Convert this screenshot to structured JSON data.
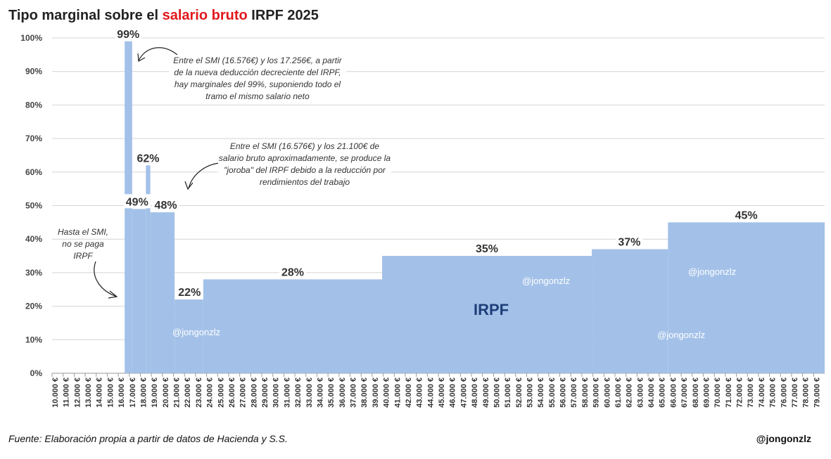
{
  "title": {
    "part1": "Tipo marginal sobre el ",
    "highlight": "salario bruto",
    "part2": " IRPF 2025",
    "highlight_color": "#e0181c"
  },
  "source": "Fuente: Elaboración propia a partir de datos de Hacienda y S.S.",
  "handle": "@jongonzlz",
  "annotations": {
    "note1": "Entre el SMI (16.576€) y los 17.256€, a partir de la nueva deducción decreciente del IRPF, hay marginales del 99%, suponiendo todo el tramo el mismo salario neto",
    "note2": "Entre el SMI (16.576€) y los 21.100€ de salario bruto aproximadamente, se produce la \"joroba\" del IRPF debido a la reducción por rendimientos del trabajo",
    "note3": "Hasta el SMI, no se paga IRPF"
  },
  "watermarks": [
    "@jongonzlz",
    "@jongonzlz",
    "@jongonzlz",
    "@jongonzlz"
  ],
  "series_label": "IRPF",
  "chart_data": {
    "type": "area",
    "title": "Tipo marginal sobre el salario bruto IRPF 2025",
    "xlabel": "",
    "ylabel": "",
    "ylim": [
      0,
      100
    ],
    "xlim": [
      10000,
      79999
    ],
    "grid": true,
    "fill_color": "#a3c1e8",
    "y_ticks": [
      "0%",
      "10%",
      "20%",
      "30%",
      "40%",
      "50%",
      "60%",
      "70%",
      "80%",
      "90%",
      "100%"
    ],
    "x_ticks": [
      "10.000 €",
      "11.000 €",
      "12.000 €",
      "13.000 €",
      "14.000 €",
      "15.000 €",
      "16.000 €",
      "17.000 €",
      "18.000 €",
      "19.000 €",
      "20.000 €",
      "21.000 €",
      "22.000 €",
      "23.000 €",
      "24.000 €",
      "25.000 €",
      "26.000 €",
      "27.000 €",
      "28.000 €",
      "29.000 €",
      "30.000 €",
      "31.000 €",
      "32.000 €",
      "33.000 €",
      "34.000 €",
      "35.000 €",
      "36.000 €",
      "37.000 €",
      "38.000 €",
      "39.000 €",
      "40.000 €",
      "41.000 €",
      "42.000 €",
      "43.000 €",
      "44.000 €",
      "45.000 €",
      "46.000 €",
      "47.000 €",
      "48.000 €",
      "49.000 €",
      "50.000 €",
      "51.000 €",
      "52.000 €",
      "53.000 €",
      "54.000 €",
      "55.000 €",
      "56.000 €",
      "57.000 €",
      "58.000 €",
      "59.000 €",
      "60.000 €",
      "61.000 €",
      "62.000 €",
      "63.000 €",
      "64.000 €",
      "65.000 €",
      "66.000 €",
      "67.000 €",
      "68.000 €",
      "69.000 €",
      "70.000 €",
      "71.000 €",
      "72.000 €",
      "73.000 €",
      "74.000 €",
      "75.000 €",
      "76.000 €",
      "77.000 €",
      "78.000 €",
      "79.000 €"
    ],
    "segments": [
      {
        "from": 10000,
        "to": 16576,
        "rate": 0
      },
      {
        "from": 16576,
        "to": 17256,
        "rate": 99
      },
      {
        "from": 17256,
        "to": 18500,
        "rate": 49
      },
      {
        "from": 18500,
        "to": 18900,
        "rate": 62
      },
      {
        "from": 18900,
        "to": 21100,
        "rate": 48
      },
      {
        "from": 21100,
        "to": 23700,
        "rate": 22
      },
      {
        "from": 23700,
        "to": 39900,
        "rate": 28
      },
      {
        "from": 39900,
        "to": 58900,
        "rate": 35
      },
      {
        "from": 58900,
        "to": 65800,
        "rate": 37
      },
      {
        "from": 65800,
        "to": 79999,
        "rate": 45
      }
    ],
    "data_labels": [
      {
        "text": "99%",
        "x": 16900,
        "y": 99
      },
      {
        "text": "62%",
        "x": 18700,
        "y": 62
      },
      {
        "text": "49%",
        "x": 17700,
        "y": 49
      },
      {
        "text": "48%",
        "x": 20300,
        "y": 48
      },
      {
        "text": "22%",
        "x": 22450,
        "y": 22
      },
      {
        "text": "28%",
        "x": 31800,
        "y": 28
      },
      {
        "text": "35%",
        "x": 49400,
        "y": 35
      },
      {
        "text": "37%",
        "x": 62300,
        "y": 37
      },
      {
        "text": "45%",
        "x": 72900,
        "y": 45
      }
    ]
  }
}
